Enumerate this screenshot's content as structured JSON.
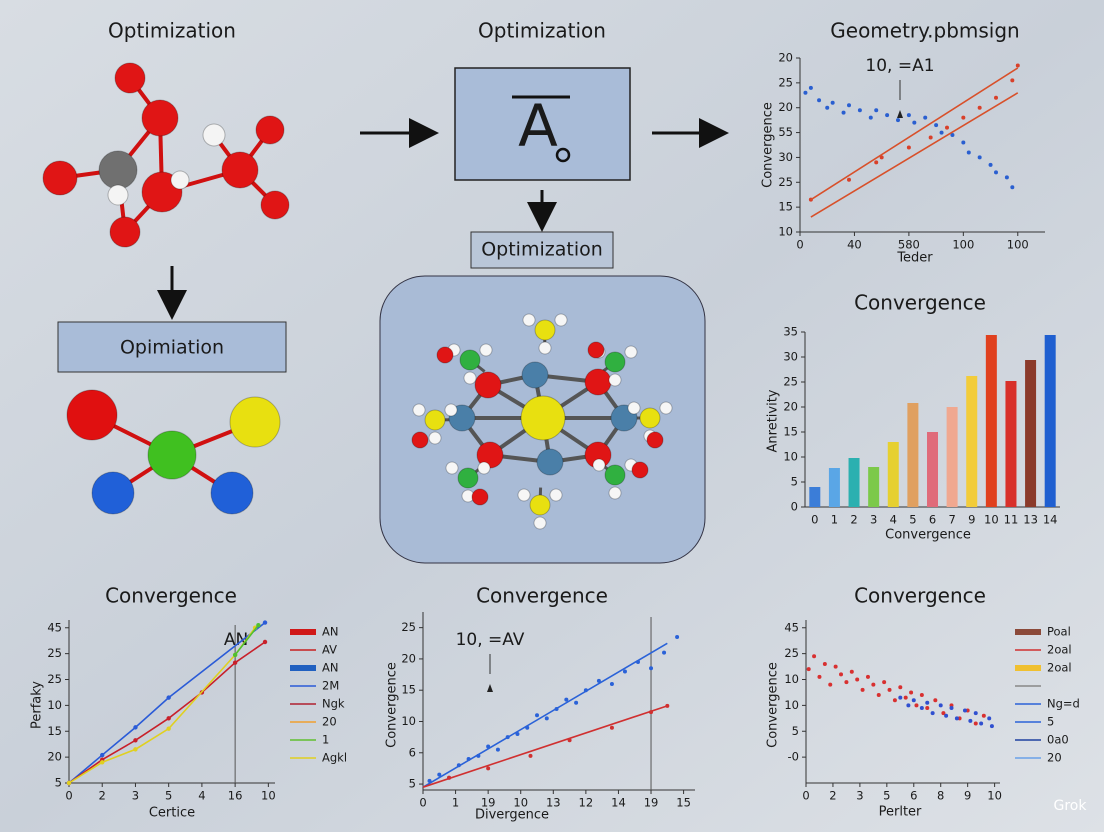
{
  "labels": {
    "title_left": "Optimization",
    "title_mid": "Optimization",
    "box_left": "Opimiation",
    "box_mid": "Optimization",
    "formula": "A",
    "watermark": "Grok"
  },
  "chart_data": [
    {
      "type": "scatter",
      "title": "Geometry.pbmsign",
      "x_label": "Teder",
      "y_label": "Convergence",
      "annotation": "10, =A1",
      "xlim": [
        0,
        4.5
      ],
      "ylim": [
        0,
        7
      ],
      "xticks": [
        0,
        {
          "value": 1,
          "label": "40"
        },
        {
          "value": 2,
          "label": "580"
        },
        {
          "value": 3,
          "label": "100"
        },
        {
          "value": 4,
          "label": "100"
        }
      ],
      "yticks": [
        {
          "value": 0,
          "label": "10"
        },
        {
          "value": 1,
          "label": "15"
        },
        {
          "value": 2,
          "label": "25"
        },
        {
          "value": 3,
          "label": "30"
        },
        {
          "value": 4,
          "label": "55"
        },
        {
          "value": 5,
          "label": "20"
        },
        {
          "value": 6,
          "label": "25"
        },
        {
          "value": 7,
          "label": "20"
        }
      ],
      "series": [
        {
          "color": "#2a5fd0",
          "style": "points",
          "x": [
            0.1,
            0.2,
            0.35,
            0.5,
            0.6,
            0.8,
            0.9,
            1.1,
            1.3,
            1.4,
            1.6,
            1.8,
            2.0,
            2.1,
            2.3,
            2.5,
            2.6,
            2.8,
            3.0,
            3.1,
            3.3,
            3.5,
            3.6,
            3.8,
            3.9
          ],
          "values": [
            5.6,
            5.8,
            5.3,
            5.0,
            5.2,
            4.8,
            5.1,
            4.9,
            4.6,
            4.9,
            4.7,
            4.5,
            4.7,
            4.4,
            4.6,
            4.3,
            4.0,
            3.9,
            3.6,
            3.2,
            3.0,
            2.7,
            2.4,
            2.2,
            1.8
          ]
        },
        {
          "color": "#d8402a",
          "style": "points",
          "x": [
            0.2,
            0.9,
            1.4,
            1.5,
            2.0,
            2.4,
            2.7,
            3.0,
            3.3,
            3.6,
            3.9,
            4.0
          ],
          "values": [
            1.3,
            2.1,
            2.8,
            3.0,
            3.4,
            3.8,
            4.2,
            4.6,
            5.0,
            5.4,
            6.1,
            6.7
          ]
        },
        {
          "color": "#d8502a",
          "style": "line",
          "x": [
            0.2,
            4.0
          ],
          "values": [
            1.3,
            6.6
          ]
        },
        {
          "color": "#d8502a",
          "style": "line",
          "x": [
            0.2,
            4.0
          ],
          "values": [
            0.6,
            5.6
          ]
        }
      ]
    },
    {
      "type": "bar",
      "title": "Convergence",
      "x_label": "Convergence",
      "y_label": "Anretivity",
      "categories": [
        "0",
        "1",
        "2",
        "3",
        "4",
        "5",
        "6",
        "7",
        "9",
        "10",
        "11",
        "13",
        "14"
      ],
      "values": [
        4,
        7.8,
        9.8,
        8,
        13,
        20.8,
        15,
        20,
        26.2,
        34.4,
        25.2,
        29.4,
        34.4
      ],
      "colors": [
        "#3b7dd8",
        "#5aa6e6",
        "#2bb0b0",
        "#7cc94a",
        "#e6d030",
        "#e0a060",
        "#e06b7a",
        "#f0a890",
        "#f2cc3a",
        "#e0401e",
        "#d8302a",
        "#8b3a2a",
        "#1f5fd0"
      ],
      "ylim": [
        0,
        35
      ],
      "yticks": [
        0,
        5,
        10,
        15,
        20,
        25,
        30,
        35
      ]
    },
    {
      "type": "line",
      "title": "Convergence",
      "x_label": "Certice",
      "y_label": "Perfaky",
      "annotation": "AN",
      "vline": 5,
      "xlim": [
        0,
        6.2
      ],
      "ylim": [
        0,
        6.3
      ],
      "xticks": [
        0,
        {
          "value": 1,
          "label": "2"
        },
        {
          "value": 2,
          "label": "3"
        },
        {
          "value": 3,
          "label": "5"
        },
        {
          "value": 4,
          "label": "4"
        },
        {
          "value": 5,
          "label": "16"
        },
        {
          "value": 6,
          "label": "10"
        }
      ],
      "yticks": [
        {
          "value": 0,
          "label": "5"
        },
        {
          "value": 1,
          "label": "20"
        },
        {
          "value": 2,
          "label": "15"
        },
        {
          "value": 3,
          "label": "10"
        },
        {
          "value": 4,
          "label": "25"
        },
        {
          "value": 5,
          "label": "25"
        },
        {
          "value": 6,
          "label": "45"
        }
      ],
      "series": [
        {
          "color": "#2a5bd7",
          "style": "line",
          "x": [
            0,
            1,
            2,
            3,
            5.9
          ],
          "values": [
            0,
            1.08,
            2.15,
            3.3,
            6.2
          ]
        },
        {
          "color": "#c8202a",
          "style": "line",
          "x": [
            0,
            1,
            2,
            3,
            4,
            5,
            5.9
          ],
          "values": [
            0,
            0.9,
            1.65,
            2.5,
            3.5,
            4.65,
            5.45
          ]
        },
        {
          "color": "#e0d020",
          "style": "line",
          "x": [
            0,
            1,
            2,
            3,
            5,
            5.6
          ],
          "values": [
            0,
            0.8,
            1.3,
            2.1,
            4.95,
            6
          ]
        },
        {
          "color": "#50c030",
          "style": "line",
          "x": [
            5,
            5.7
          ],
          "values": [
            4.95,
            6.1
          ]
        }
      ],
      "legend": [
        {
          "label": "AN",
          "color": "#d01818",
          "thick": true
        },
        {
          "label": "AV",
          "color": "#c82020"
        },
        {
          "label": "AN",
          "color": "#2060c0",
          "thick": true
        },
        {
          "label": "2M",
          "color": "#2a5bd7"
        },
        {
          "label": "Ngk",
          "color": "#b02030"
        },
        {
          "label": "20",
          "color": "#f0a030"
        },
        {
          "label": "1",
          "color": "#60c030"
        },
        {
          "label": "Agkl",
          "color": "#e0d020"
        }
      ]
    },
    {
      "type": "scatter",
      "title": "Convergence",
      "x_label": "Divergence",
      "y_label": "Convergence",
      "annotation": "10, =AV",
      "vline": 7,
      "xlim": [
        0,
        8.35
      ],
      "ylim": [
        -0.19,
        5.5
      ],
      "xticks": [
        0,
        {
          "value": 1,
          "label": "1"
        },
        {
          "value": 2,
          "label": "19"
        },
        {
          "value": 3,
          "label": "10"
        },
        {
          "value": 4,
          "label": "13"
        },
        {
          "value": 5,
          "label": "12"
        },
        {
          "value": 6,
          "label": "14"
        },
        {
          "value": 7,
          "label": "19"
        },
        {
          "value": 8,
          "label": "15"
        }
      ],
      "yticks": [
        {
          "value": 0,
          "label": "5"
        },
        {
          "value": 1,
          "label": "6"
        },
        {
          "value": 2,
          "label": "10"
        },
        {
          "value": 3,
          "label": "15"
        },
        {
          "value": 4,
          "label": "20"
        },
        {
          "value": 5,
          "label": "25"
        }
      ],
      "series": [
        {
          "color": "#2a62d8",
          "style": "points",
          "x": [
            0.2,
            0.5,
            0.8,
            1.1,
            1.4,
            1.7,
            2.0,
            2.3,
            2.6,
            2.9,
            3.2,
            3.5,
            3.8,
            4.1,
            4.4,
            4.7,
            5.0,
            5.4,
            5.8,
            6.2,
            6.6,
            7.0,
            7.4,
            7.8
          ],
          "values": [
            0.1,
            0.3,
            0.2,
            0.6,
            0.8,
            0.9,
            1.2,
            1.1,
            1.5,
            1.6,
            1.8,
            2.2,
            2.1,
            2.4,
            2.7,
            2.6,
            3.0,
            3.3,
            3.2,
            3.6,
            3.9,
            3.7,
            4.2,
            4.7
          ]
        },
        {
          "color": "#d03030",
          "style": "points",
          "x": [
            0.8,
            2.0,
            3.3,
            4.5,
            5.8,
            7.0,
            7.5
          ],
          "values": [
            0.2,
            0.5,
            0.9,
            1.4,
            1.8,
            2.3,
            2.5
          ]
        },
        {
          "color": "#2a62d8",
          "style": "line",
          "x": [
            0,
            7.5
          ],
          "values": [
            -0.1,
            4.5
          ]
        },
        {
          "color": "#d03030",
          "style": "line",
          "x": [
            0,
            7.5
          ],
          "values": [
            -0.1,
            2.5
          ]
        }
      ]
    },
    {
      "type": "scatter",
      "title": "Convergence",
      "x_label": "Perlter",
      "y_label": "Convergence",
      "xlim": [
        0,
        7.2
      ],
      "ylim": [
        -1,
        5.3
      ],
      "xticks": [
        0,
        {
          "value": 1,
          "label": "2"
        },
        {
          "value": 2,
          "label": "3"
        },
        {
          "value": 3,
          "label": "5"
        },
        {
          "value": 4,
          "label": "6"
        },
        {
          "value": 5,
          "label": "8"
        },
        {
          "value": 6,
          "label": "9"
        },
        {
          "value": 7,
          "label": "10"
        }
      ],
      "yticks": [
        {
          "value": 0,
          "label": "-0"
        },
        {
          "value": 1,
          "label": "5"
        },
        {
          "value": 2,
          "label": "10"
        },
        {
          "value": 3,
          "label": "10"
        },
        {
          "value": 4,
          "label": "25"
        },
        {
          "value": 5,
          "label": "45"
        }
      ],
      "series": [
        {
          "color": "#d83030",
          "style": "points",
          "x": [
            0.1,
            0.3,
            0.5,
            0.7,
            0.9,
            1.1,
            1.3,
            1.5,
            1.7,
            1.9,
            2.1,
            2.3,
            2.5,
            2.7,
            2.9,
            3.1,
            3.3,
            3.5,
            3.7,
            3.9,
            4.1,
            4.3,
            4.5,
            4.8,
            5.1,
            5.4,
            5.7,
            6.0,
            6.3,
            6.6
          ],
          "values": [
            3.4,
            3.9,
            3.1,
            3.6,
            2.8,
            3.5,
            3.2,
            2.9,
            3.3,
            3.0,
            2.6,
            3.1,
            2.8,
            2.4,
            2.9,
            2.6,
            2.2,
            2.7,
            2.3,
            2.5,
            2.0,
            2.4,
            1.9,
            2.2,
            1.7,
            2.0,
            1.5,
            1.8,
            1.3,
            1.6
          ]
        },
        {
          "color": "#3050d0",
          "style": "points",
          "x": [
            3.5,
            3.8,
            4.0,
            4.3,
            4.5,
            4.7,
            5.0,
            5.2,
            5.4,
            5.6,
            5.9,
            6.1,
            6.3,
            6.5,
            6.8,
            6.9
          ],
          "values": [
            2.3,
            2.0,
            2.2,
            1.9,
            2.1,
            1.7,
            2.0,
            1.6,
            1.9,
            1.5,
            1.8,
            1.4,
            1.7,
            1.3,
            1.5,
            1.2
          ]
        }
      ],
      "legend": [
        {
          "label": "Poal",
          "color": "#8b4a3a",
          "thick": true
        },
        {
          "label": "2oal",
          "color": "#d03030"
        },
        {
          "label": "2oal",
          "color": "#f0c030",
          "thick": true
        },
        {
          "color": "#888888"
        },
        {
          "label": "Ng=d",
          "color": "#2a62d8"
        },
        {
          "label": "5",
          "color": "#2a62d8"
        },
        {
          "label": "0a0",
          "color": "#1f40a0"
        },
        {
          "label": "20",
          "color": "#6aa0e8"
        }
      ]
    }
  ]
}
